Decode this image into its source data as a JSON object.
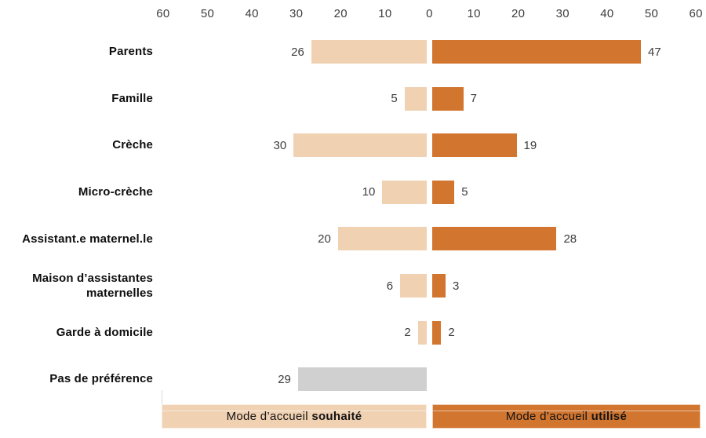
{
  "chart_data": {
    "type": "bar",
    "orientation": "horizontal-diverging",
    "title": "",
    "grid": false,
    "axis_position": "top",
    "axis_ticks": [
      "60",
      "50",
      "40",
      "30",
      "20",
      "10",
      "0",
      "10",
      "20",
      "30",
      "40",
      "50",
      "60"
    ],
    "xlim": [
      -60,
      60
    ],
    "categories": [
      "Parents",
      "Famille",
      "Crèche",
      "Micro-crèche",
      "Assistant.e maternel.le",
      "Maison d’assistantes\nmaternelles",
      "Garde à domicile",
      "Pas de préférence"
    ],
    "series": [
      {
        "name": "Mode d’accueil souhaité",
        "side": "left",
        "color": "#F0D1B2",
        "values": [
          26,
          5,
          30,
          10,
          20,
          6,
          2,
          29
        ],
        "point_colors": [
          null,
          null,
          null,
          null,
          null,
          null,
          null,
          "#CFD0CF"
        ]
      },
      {
        "name": "Mode d’accueil utilisé",
        "side": "right",
        "color": "#D1752F",
        "values": [
          47,
          7,
          19,
          5,
          28,
          3,
          2,
          null
        ],
        "point_colors": [
          null,
          null,
          null,
          null,
          null,
          null,
          null,
          null
        ]
      }
    ],
    "legend_position": "bottom",
    "legend": [
      {
        "prefix": "Mode d’accueil ",
        "bold": "souhaité",
        "color": "#F0D1B2"
      },
      {
        "prefix": "Mode d’accueil ",
        "bold": "utilisé",
        "color": "#D1752F"
      }
    ],
    "colors": {
      "souhaite": "#F0D1B2",
      "utilise": "#D1752F",
      "no_preference": "#CFD0CF",
      "axis_text": "#3d3d3d",
      "category_text": "#0e0e0e"
    }
  }
}
